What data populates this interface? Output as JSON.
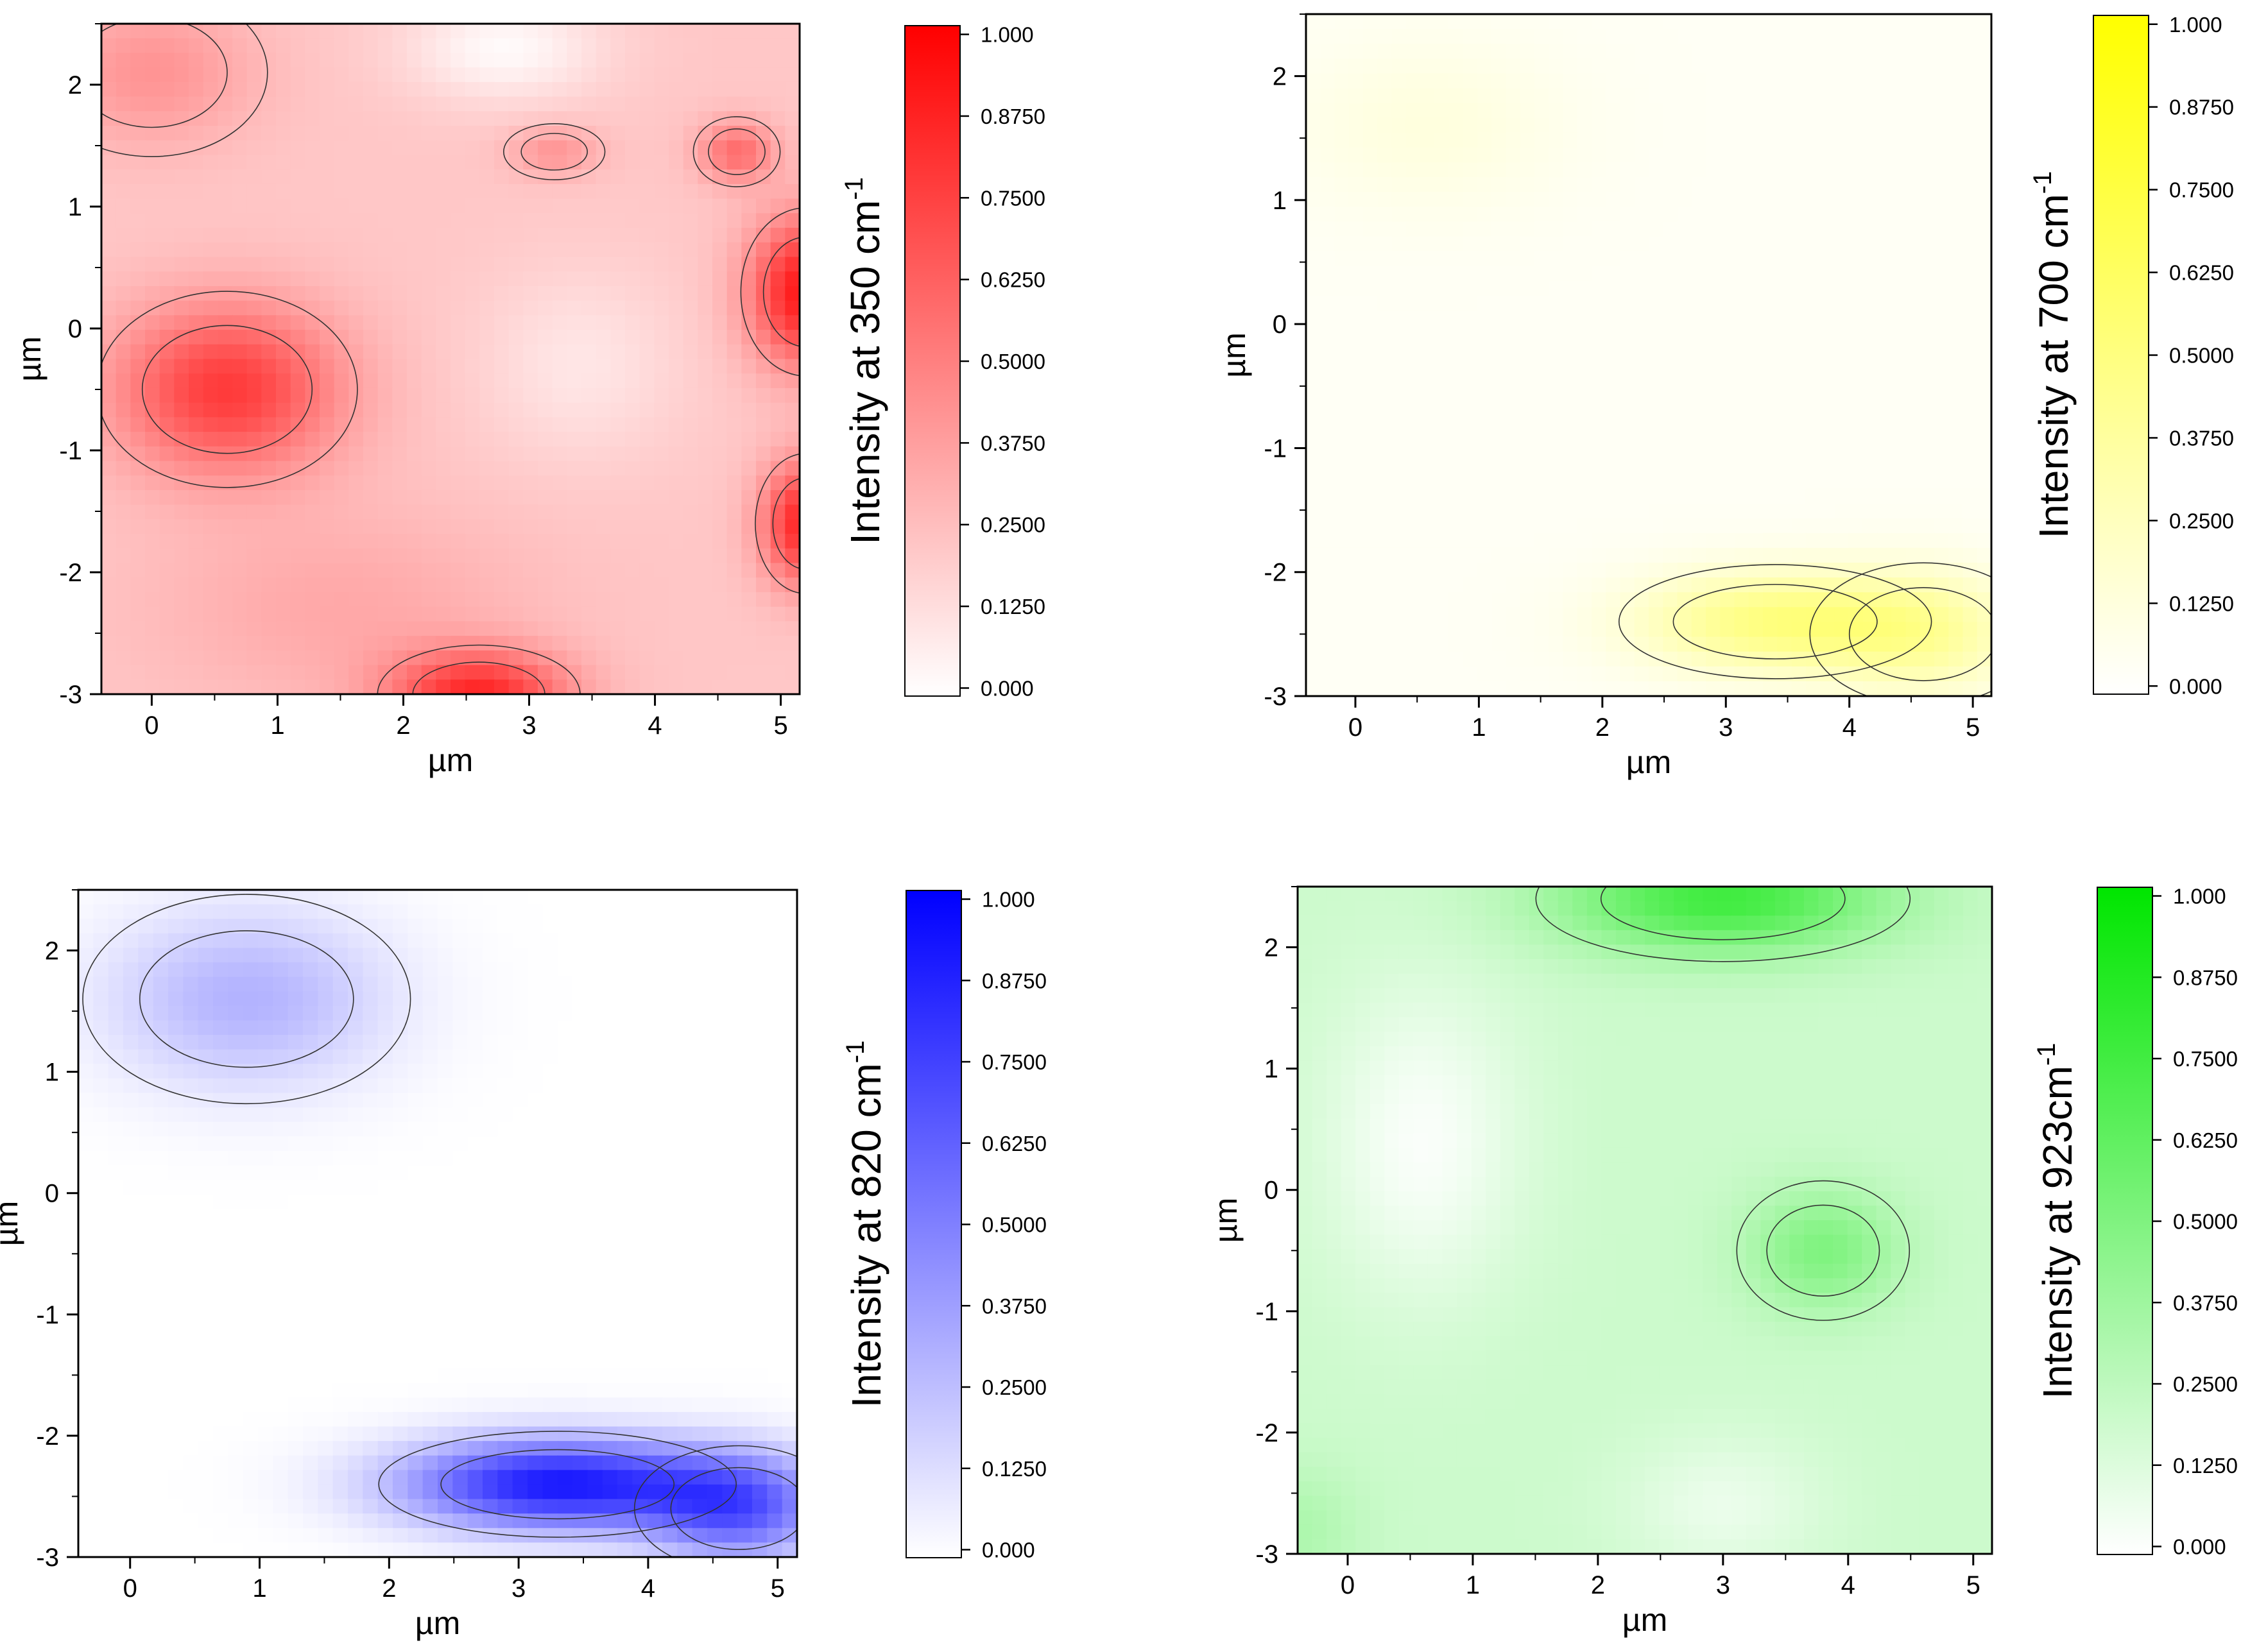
{
  "chart_data": [
    {
      "type": "heatmap",
      "id": "p350",
      "color": "#ff0000",
      "colorbar_label": "Intensity at 350 cm",
      "colorbar_superscript": "-1",
      "xlabel": "µm",
      "ylabel": "µm",
      "xlim": [
        -0.4,
        5.15
      ],
      "ylim": [
        -3.0,
        2.5
      ],
      "xticks": [
        "0",
        "1",
        "2",
        "3",
        "4",
        "5"
      ],
      "yticks": [
        "2",
        "1",
        "0",
        "-1",
        "-2",
        "-3"
      ],
      "colorbar_ticks": [
        "1.000",
        "0.8750",
        "0.7500",
        "0.6250",
        "0.5000",
        "0.3750",
        "0.2500",
        "0.1250",
        "0.000"
      ],
      "background_level": 0.22,
      "hotspots": [
        {
          "x": 0.6,
          "y": -0.5,
          "sx": 0.9,
          "sy": 0.7,
          "v": 0.55
        },
        {
          "x": 5.2,
          "y": 0.3,
          "sx": 0.45,
          "sy": 0.6,
          "v": 0.7
        },
        {
          "x": 5.2,
          "y": -1.6,
          "sx": 0.35,
          "sy": 0.5,
          "v": 0.65
        },
        {
          "x": 2.6,
          "y": -3.0,
          "sx": 0.7,
          "sy": 0.35,
          "v": 0.6
        },
        {
          "x": 4.65,
          "y": 1.45,
          "sx": 0.3,
          "sy": 0.25,
          "v": 0.35
        },
        {
          "x": 3.2,
          "y": 1.45,
          "sx": 0.35,
          "sy": 0.2,
          "v": 0.2
        },
        {
          "x": 0.0,
          "y": 2.1,
          "sx": 0.8,
          "sy": 0.6,
          "v": 0.2
        },
        {
          "x": 1.5,
          "y": -2.3,
          "sx": 1.5,
          "sy": 0.8,
          "v": 0.12
        },
        {
          "x": 2.8,
          "y": 2.3,
          "sx": 0.8,
          "sy": 0.45,
          "v": -0.2
        },
        {
          "x": 3.4,
          "y": -0.3,
          "sx": 0.8,
          "sy": 0.8,
          "v": -0.12
        }
      ]
    },
    {
      "type": "heatmap",
      "id": "p700",
      "color": "#ffff00",
      "colorbar_label": "Intensity at 700 cm",
      "colorbar_superscript": "-1",
      "xlabel": "µm",
      "ylabel": "µm",
      "xlim": [
        -0.4,
        5.15
      ],
      "ylim": [
        -3.0,
        2.5
      ],
      "xticks": [
        "0",
        "1",
        "2",
        "3",
        "4",
        "5"
      ],
      "yticks": [
        "2",
        "1",
        "0",
        "-1",
        "-2",
        "-3"
      ],
      "colorbar_ticks": [
        "1.000",
        "0.8750",
        "0.7500",
        "0.6250",
        "0.5000",
        "0.3750",
        "0.2500",
        "0.1250",
        "0.000"
      ],
      "background_level": 0.04,
      "hotspots": [
        {
          "x": 0.6,
          "y": 1.6,
          "sx": 1.1,
          "sy": 0.7,
          "v": 0.09
        },
        {
          "x": 3.4,
          "y": -2.4,
          "sx": 1.1,
          "sy": 0.4,
          "v": 0.45
        },
        {
          "x": 4.6,
          "y": -2.5,
          "sx": 0.8,
          "sy": 0.5,
          "v": 0.3
        }
      ]
    },
    {
      "type": "heatmap",
      "id": "p820",
      "color": "#0000ff",
      "colorbar_label": "Intensity at 820 cm",
      "colorbar_superscript": "-1",
      "xlabel": "µm",
      "ylabel": "µm",
      "xlim": [
        -0.4,
        5.15
      ],
      "ylim": [
        -3.0,
        2.5
      ],
      "xticks": [
        "0",
        "1",
        "2",
        "3",
        "4",
        "5"
      ],
      "yticks": [
        "2",
        "1",
        "0",
        "-1",
        "-2",
        "-3"
      ],
      "colorbar_ticks": [
        "1.000",
        "0.8750",
        "0.7500",
        "0.6250",
        "0.5000",
        "0.3750",
        "0.2500",
        "0.1250",
        "0.000"
      ],
      "background_level": 0.0,
      "hotspots": [
        {
          "x": 0.9,
          "y": 1.6,
          "sx": 1.1,
          "sy": 0.75,
          "v": 0.3
        },
        {
          "x": 3.3,
          "y": -2.4,
          "sx": 1.2,
          "sy": 0.38,
          "v": 0.9
        },
        {
          "x": 4.7,
          "y": -2.6,
          "sx": 0.7,
          "sy": 0.45,
          "v": 0.6
        }
      ]
    },
    {
      "type": "heatmap",
      "id": "p923",
      "color": "#00e600",
      "colorbar_label": "Intensity at 923cm",
      "colorbar_superscript": "-1",
      "xlabel": "µm",
      "ylabel": "µm",
      "xlim": [
        -0.4,
        5.15
      ],
      "ylim": [
        -3.0,
        2.5
      ],
      "xticks": [
        "0",
        "1",
        "2",
        "3",
        "4",
        "5"
      ],
      "yticks": [
        "2",
        "1",
        "0",
        "-1",
        "-2",
        "-3"
      ],
      "colorbar_ticks": [
        "1.000",
        "0.8750",
        "0.7500",
        "0.6250",
        "0.5000",
        "0.3750",
        "0.2500",
        "0.1250",
        "0.000"
      ],
      "background_level": 0.2,
      "hotspots": [
        {
          "x": 3.0,
          "y": 2.4,
          "sx": 1.3,
          "sy": 0.45,
          "v": 0.55
        },
        {
          "x": 3.8,
          "y": -0.5,
          "sx": 0.6,
          "sy": 0.5,
          "v": 0.3
        },
        {
          "x": 0.6,
          "y": 0.4,
          "sx": 0.8,
          "sy": 1.3,
          "v": -0.18
        },
        {
          "x": 3.0,
          "y": -2.6,
          "sx": 0.8,
          "sy": 0.6,
          "v": -0.12
        },
        {
          "x": -0.4,
          "y": -2.8,
          "sx": 0.5,
          "sy": 0.5,
          "v": 0.12
        }
      ]
    }
  ]
}
